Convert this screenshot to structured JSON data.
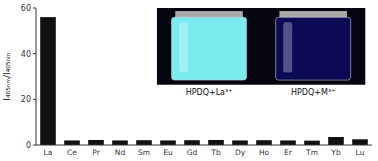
{
  "chart_data": {
    "type": "bar",
    "categories": [
      "La",
      "Ce",
      "Pr",
      "Nd",
      "Sm",
      "Eu",
      "Gd",
      "Tb",
      "Dy",
      "Ho",
      "Er",
      "Tm",
      "Yb",
      "Lu"
    ],
    "values": [
      56,
      2.0,
      2.2,
      2.0,
      2.1,
      2.0,
      2.1,
      2.2,
      2.0,
      2.1,
      2.0,
      1.9,
      3.5,
      2.5
    ],
    "color": "#111111",
    "y_label": "I₄₆₅ₙₘ/I₄₀₅ₙₘ",
    "ylim": [
      0,
      60
    ],
    "yticks": [
      0,
      20,
      40,
      60
    ],
    "grid": false,
    "annotations": [
      "HPDQ+La³⁺",
      "HPDQ+M³⁺"
    ]
  }
}
